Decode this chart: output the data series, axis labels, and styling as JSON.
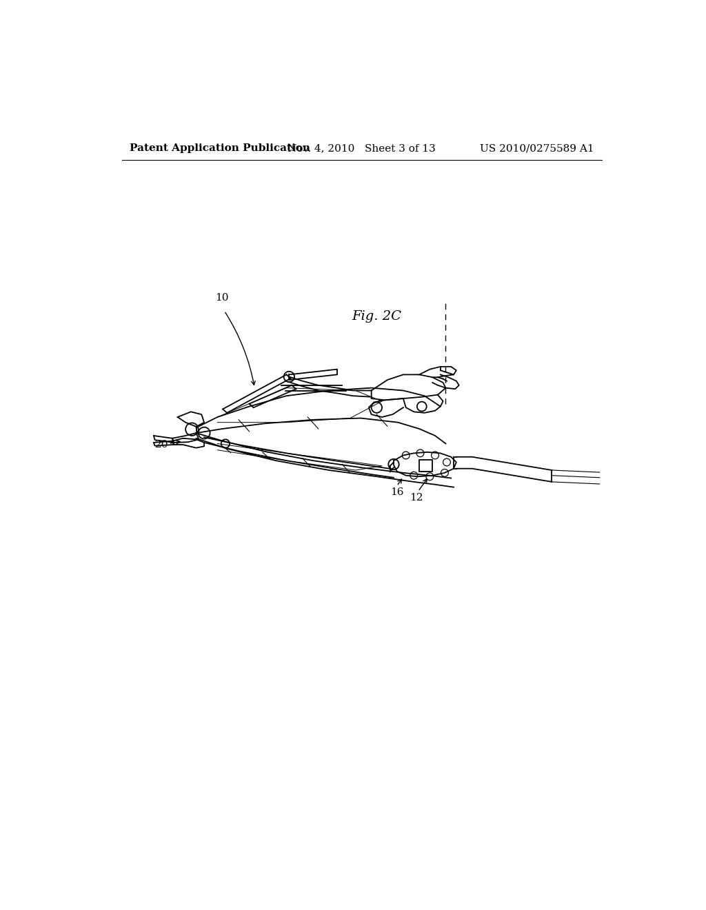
{
  "background_color": "#ffffff",
  "header_left": "Patent Application Publication",
  "header_center": "Nov. 4, 2010   Sheet 3 of 13",
  "header_right": "US 2010/0275589 A1",
  "figure_label": "Fig. 2C",
  "ref_fontsize": 11,
  "header_fontsize": 11,
  "fig_label_fontsize": 14
}
